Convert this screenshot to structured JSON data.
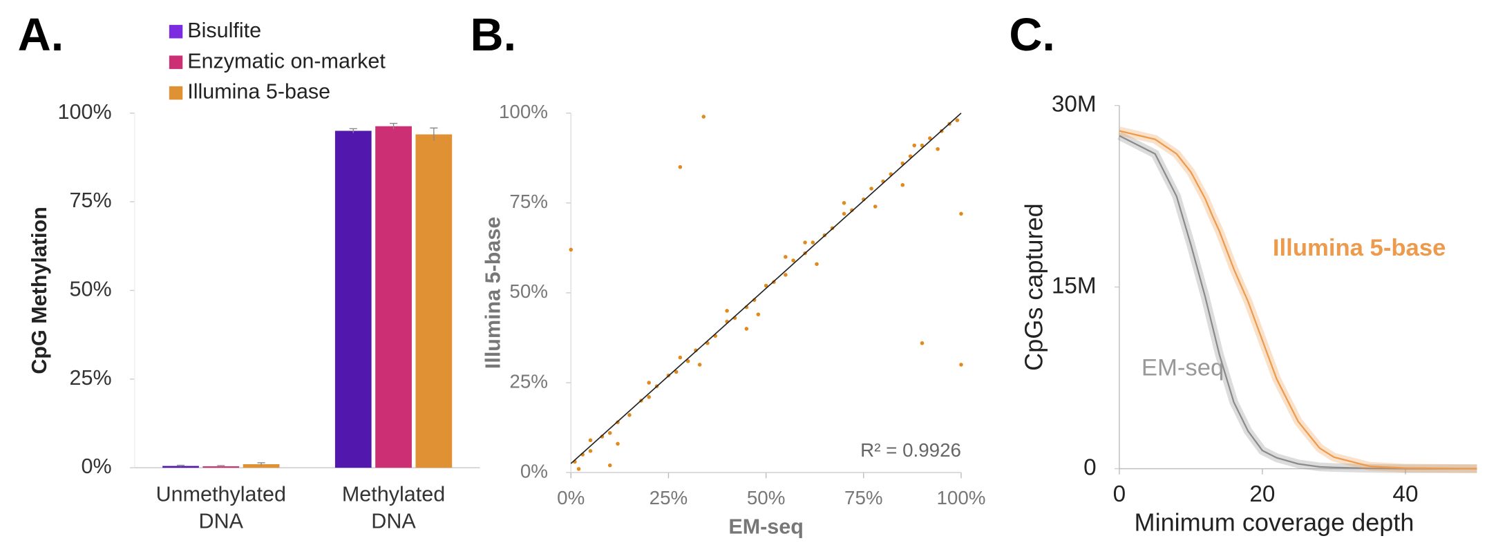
{
  "chart_data": [
    {
      "type": "bar",
      "panel_label": "A.",
      "ylabel": "CpG Methylation",
      "categories": [
        "Unmethylated DNA",
        "Methylated DNA"
      ],
      "series": [
        {
          "name": "Bisulfite",
          "color": "#5218ad",
          "values": [
            0.5,
            95
          ],
          "errors": [
            0.2,
            0.6
          ]
        },
        {
          "name": "Enzymatic on-market",
          "color": "#cc2f74",
          "values": [
            0.4,
            96.3
          ],
          "errors": [
            0.2,
            0.8
          ]
        },
        {
          "name": "Illumina 5-base",
          "color": "#e09133",
          "values": [
            1.0,
            94
          ],
          "errors": [
            0.4,
            1.8
          ]
        }
      ],
      "ylim": [
        0,
        100
      ],
      "yticks": [
        {
          "value": 0,
          "label": "0%"
        },
        {
          "value": 25,
          "label": "25%"
        },
        {
          "value": 50,
          "label": "50%"
        },
        {
          "value": 75,
          "label": "75%"
        },
        {
          "value": 100,
          "label": "100%"
        }
      ]
    },
    {
      "type": "scatter",
      "panel_label": "B.",
      "xlabel": "EM-seq",
      "ylabel": "Illumina 5-base",
      "annotation": "R² = 0.9926",
      "color": "#e08a1e",
      "x": [
        1,
        3,
        5,
        8,
        10,
        12,
        15,
        18,
        20,
        22,
        25,
        27,
        30,
        32,
        35,
        37,
        40,
        42,
        45,
        47,
        50,
        52,
        55,
        57,
        60,
        62,
        65,
        67,
        70,
        72,
        75,
        77,
        80,
        82,
        85,
        87,
        90,
        92,
        95,
        97,
        99,
        5,
        12,
        28,
        33,
        40,
        48,
        55,
        63,
        70,
        78,
        88,
        94,
        2,
        20,
        45,
        60,
        85,
        0,
        34,
        28,
        100,
        100,
        90,
        10
      ],
      "y": [
        3,
        5,
        6,
        10,
        11,
        14,
        16,
        20,
        21,
        24,
        27,
        28,
        31,
        34,
        36,
        38,
        42,
        43,
        46,
        48,
        52,
        53,
        55,
        59,
        61,
        64,
        66,
        68,
        72,
        73,
        76,
        79,
        81,
        83,
        86,
        88,
        91,
        93,
        95,
        97,
        98,
        9,
        8,
        32,
        30,
        45,
        44,
        60,
        58,
        75,
        74,
        91,
        90,
        1,
        25,
        40,
        64,
        80,
        62,
        99,
        85,
        72,
        30,
        36,
        2
      ],
      "fit_line": {
        "x": [
          0,
          100
        ],
        "y": [
          2.5,
          100
        ]
      },
      "xlim": [
        0,
        100
      ],
      "ylim": [
        0,
        100
      ],
      "xticks": [
        {
          "value": 0,
          "label": "0%"
        },
        {
          "value": 25,
          "label": "25%"
        },
        {
          "value": 50,
          "label": "50%"
        },
        {
          "value": 75,
          "label": "75%"
        },
        {
          "value": 100,
          "label": "100%"
        }
      ],
      "yticks": [
        {
          "value": 0,
          "label": "0%"
        },
        {
          "value": 25,
          "label": "25%"
        },
        {
          "value": 50,
          "label": "50%"
        },
        {
          "value": 75,
          "label": "75%"
        },
        {
          "value": 100,
          "label": "100%"
        }
      ]
    },
    {
      "type": "line",
      "panel_label": "C.",
      "xlabel": "Minimum coverage depth",
      "ylabel": "CpGs captured",
      "x": [
        0,
        5,
        8,
        10,
        12,
        13,
        14,
        16,
        18,
        20,
        22,
        25,
        28,
        30,
        35,
        40,
        50
      ],
      "series": [
        {
          "name": "EM-seq",
          "color": "#8a8a8a",
          "values": [
            27.5,
            26.0,
            22.5,
            18.5,
            14.2,
            11.8,
            9.4,
            5.5,
            3.1,
            1.5,
            0.9,
            0.4,
            0.15,
            0.1,
            0.03,
            0,
            0
          ]
        },
        {
          "name": "Illumina 5-base",
          "color": "#ee9a4c",
          "values": [
            27.9,
            27.2,
            26.0,
            24.5,
            22.3,
            20.9,
            19.6,
            16.5,
            13.8,
            10.6,
            7.4,
            3.9,
            1.7,
            0.95,
            0.2,
            0.05,
            0
          ]
        }
      ],
      "xlim": [
        0,
        50
      ],
      "ylim": [
        0,
        30
      ],
      "xticks": [
        0,
        20,
        40
      ],
      "yticks": [
        0,
        {
          "value": 15,
          "label": "15M"
        },
        {
          "value": 30,
          "label": "30M"
        }
      ]
    }
  ]
}
